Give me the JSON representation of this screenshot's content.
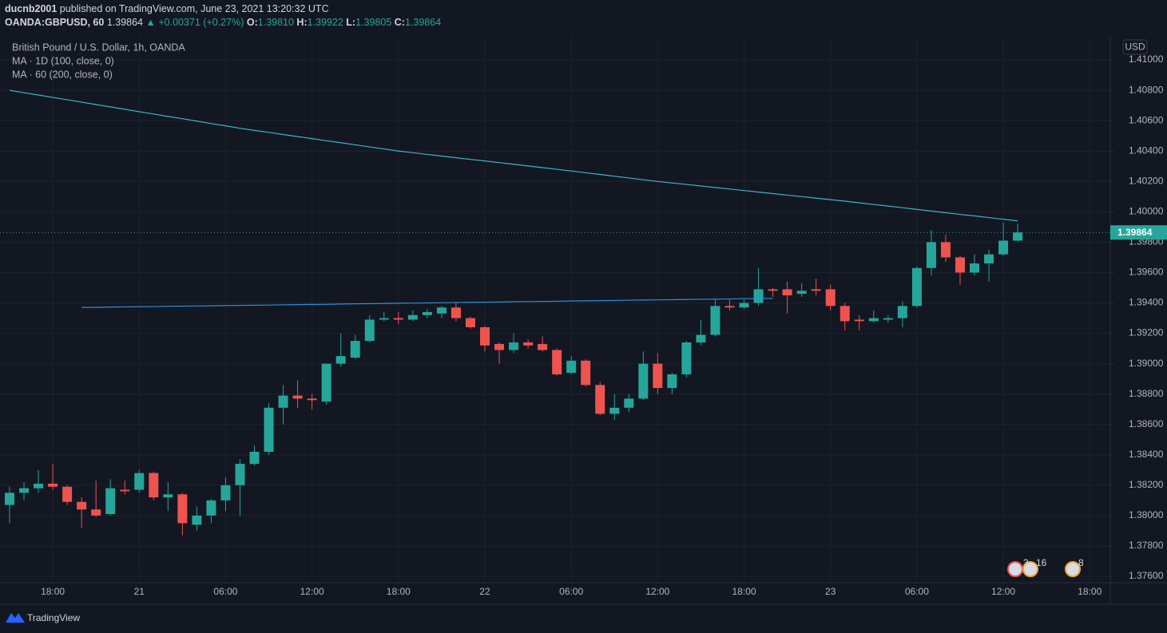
{
  "header": {
    "author": "ducnb2001",
    "published": "published on TradingView.com, June 23, 2021 13:20:32 UTC",
    "symbol": "OANDA:GBPUSD, 60",
    "last": "1.39864",
    "arrow": "▲",
    "change": "+0.00371 (+0.27%)",
    "open_label": "O:",
    "open": "1.39810",
    "high_label": "H:",
    "high": "1.39922",
    "low_label": "L:",
    "low": "1.39805",
    "close_label": "C:",
    "close": "1.39864"
  },
  "currency": "USD",
  "events": [
    3,
    16,
    8
  ],
  "footer": "TradingView",
  "chart_data": {
    "type": "candlestick",
    "title": "British Pound / U.S. Dollar, 1h, OANDA",
    "up_color": "#26a69a",
    "down_color": "#ef5350",
    "grid": true,
    "categories": [
      null,
      null,
      null,
      "18:00",
      null,
      null,
      null,
      null,
      null,
      "21",
      null,
      null,
      null,
      null,
      null,
      "06:00",
      null,
      null,
      null,
      null,
      null,
      "12:00",
      null,
      null,
      null,
      null,
      null,
      "18:00",
      null,
      null,
      null,
      null,
      null,
      "22",
      null,
      null,
      null,
      null,
      null,
      "06:00",
      null,
      null,
      null,
      null,
      null,
      "12:00",
      null,
      null,
      null,
      null,
      null,
      "18:00",
      null,
      null,
      null,
      null,
      null,
      "23",
      null,
      null,
      null,
      null,
      null,
      "06:00",
      null,
      null,
      null,
      null,
      null,
      "12:00",
      null,
      null,
      null,
      null,
      null,
      "18:00",
      null
    ],
    "open": [
      1.3807,
      1.3815,
      1.3818,
      1.3821,
      1.3819,
      1.3809,
      1.3804,
      1.3801,
      1.3817,
      1.3817,
      1.3828,
      1.3812,
      1.3814,
      1.3794,
      1.38,
      1.381,
      1.382,
      1.3834,
      1.3842,
      1.3871,
      1.3879,
      1.3877,
      1.3875,
      1.39,
      1.3904,
      1.3915,
      1.3929,
      1.393,
      1.3929,
      1.3932,
      1.3933,
      1.3937,
      1.393,
      1.3924,
      1.3913,
      1.3909,
      1.3914,
      1.3913,
      1.3909,
      1.3894,
      1.3902,
      1.3886,
      1.3867,
      1.3871,
      1.3877,
      1.39,
      1.3884,
      1.3893,
      1.3914,
      1.3919,
      1.3938,
      1.3937,
      1.394,
      1.3949,
      1.3949,
      1.3946,
      1.3949,
      1.3949,
      1.3938,
      1.3929,
      1.3928,
      1.3929,
      1.393,
      1.3938,
      1.3963,
      1.398,
      1.397,
      1.396,
      1.3966,
      1.3972,
      1.3981,
      null,
      null,
      null,
      null,
      null,
      null
    ],
    "high": [
      1.3819,
      1.3822,
      1.383,
      1.3834,
      1.382,
      1.3812,
      1.3823,
      1.3824,
      1.3823,
      1.383,
      1.3829,
      1.3822,
      1.3815,
      1.3806,
      1.3811,
      1.3825,
      1.3837,
      1.3846,
      1.3874,
      1.3886,
      1.3889,
      1.388,
      1.39,
      1.392,
      1.3919,
      1.3932,
      1.3934,
      1.3934,
      1.3935,
      1.3936,
      1.3938,
      1.394,
      1.3931,
      1.3925,
      1.3914,
      1.392,
      1.3916,
      1.3918,
      1.391,
      1.3905,
      1.3903,
      1.3888,
      1.388,
      1.388,
      1.3908,
      1.3907,
      1.3894,
      1.3915,
      1.3929,
      1.3942,
      1.3942,
      1.3942,
      1.3963,
      1.395,
      1.3954,
      1.3953,
      1.3956,
      1.3952,
      1.394,
      1.3932,
      1.3935,
      1.3932,
      1.3941,
      1.3964,
      1.3988,
      1.3985,
      1.3971,
      1.3972,
      1.3975,
      1.3993,
      1.39922,
      null,
      null,
      null,
      null,
      null,
      null
    ],
    "low": [
      1.3795,
      1.381,
      1.3815,
      1.3817,
      1.3807,
      1.3792,
      1.3799,
      1.38,
      1.3814,
      1.3815,
      1.381,
      1.3803,
      1.3787,
      1.379,
      1.3795,
      1.3803,
      1.38,
      1.3833,
      1.384,
      1.386,
      1.3871,
      1.387,
      1.3873,
      1.3898,
      1.3903,
      1.3914,
      1.3928,
      1.3926,
      1.3928,
      1.393,
      1.393,
      1.3928,
      1.3923,
      1.3908,
      1.39,
      1.3907,
      1.391,
      1.3908,
      1.3892,
      1.3893,
      1.3885,
      1.3866,
      1.3863,
      1.3868,
      1.3876,
      1.388,
      1.388,
      1.3891,
      1.3912,
      1.3918,
      1.3935,
      1.3936,
      1.3938,
      1.3944,
      1.3933,
      1.3944,
      1.3945,
      1.3935,
      1.3922,
      1.3922,
      1.3927,
      1.3927,
      1.3924,
      1.3937,
      1.3958,
      1.3967,
      1.3952,
      1.3958,
      1.3954,
      1.3971,
      1.39805,
      null,
      null,
      null,
      null,
      null,
      null
    ],
    "close": [
      1.3815,
      1.3818,
      1.3821,
      1.3819,
      1.3809,
      1.3804,
      1.38,
      1.3818,
      1.3816,
      1.3828,
      1.3812,
      1.3814,
      1.3795,
      1.38,
      1.381,
      1.382,
      1.3834,
      1.3842,
      1.3871,
      1.3879,
      1.3877,
      1.3876,
      1.39,
      1.3905,
      1.3915,
      1.3929,
      1.393,
      1.3929,
      1.3932,
      1.3934,
      1.3937,
      1.393,
      1.3924,
      1.3912,
      1.3909,
      1.3914,
      1.3912,
      1.3909,
      1.3893,
      1.3902,
      1.3886,
      1.3867,
      1.3871,
      1.3877,
      1.39,
      1.3884,
      1.3893,
      1.3914,
      1.3919,
      1.3938,
      1.3937,
      1.394,
      1.3949,
      1.3948,
      1.3945,
      1.3948,
      1.3948,
      1.3938,
      1.3928,
      1.3928,
      1.393,
      1.393,
      1.3938,
      1.3963,
      1.398,
      1.397,
      1.396,
      1.3966,
      1.3972,
      1.3981,
      1.39864,
      null,
      null,
      null,
      null,
      null,
      null
    ],
    "series": [
      {
        "name": "MA · 1D (100, close, 0)",
        "type": "line",
        "color": "#2f8fd8",
        "values": [
          null,
          null,
          null,
          null,
          null,
          1.3937,
          1.39371,
          1.39373,
          1.39374,
          1.39375,
          1.39376,
          1.39378,
          1.39379,
          1.3938,
          1.39381,
          1.39383,
          1.39384,
          1.39385,
          1.39386,
          1.39388,
          1.39389,
          1.3939,
          1.39391,
          1.39393,
          1.39394,
          1.39395,
          1.39396,
          1.39398,
          1.39399,
          1.394,
          1.39401,
          1.39403,
          1.39404,
          1.39405,
          1.39406,
          1.39408,
          1.39409,
          1.3941,
          1.39411,
          1.39413,
          1.39414,
          1.39415,
          1.39416,
          1.39418,
          1.39419,
          1.3942,
          1.39421,
          1.39423,
          1.39424,
          1.39425,
          1.39426,
          1.39428,
          1.39429,
          1.3943,
          null,
          null,
          null,
          null,
          null,
          null,
          null,
          null,
          null,
          null,
          null,
          null,
          null,
          null,
          null,
          null,
          null,
          null,
          null,
          null,
          null,
          null,
          null
        ]
      },
      {
        "name": "MA · 60 (200, close, 0)",
        "type": "line",
        "color": "#3cb4c6",
        "values": [
          1.408,
          1.40784,
          1.40769,
          1.40753,
          1.40738,
          1.40722,
          1.40706,
          1.40691,
          1.40675,
          1.40659,
          1.40644,
          1.40628,
          1.40613,
          1.40597,
          1.40581,
          1.40566,
          1.4055,
          1.40536,
          1.40523,
          1.40509,
          1.40495,
          1.40482,
          1.40468,
          1.40455,
          1.40441,
          1.40427,
          1.40414,
          1.404,
          1.40389,
          1.40378,
          1.40367,
          1.40356,
          1.40345,
          1.40335,
          1.40324,
          1.40313,
          1.40302,
          1.40291,
          1.4028,
          1.40269,
          1.40257,
          1.40246,
          1.40234,
          1.40223,
          1.40211,
          1.402,
          1.4019,
          1.4018,
          1.4017,
          1.4016,
          1.4015,
          1.4014,
          1.4013,
          1.4012,
          1.4011,
          1.401,
          1.4009,
          1.4008,
          1.4007,
          1.40059,
          1.40048,
          1.40038,
          1.40027,
          1.40016,
          1.40005,
          1.39994,
          1.39983,
          1.39973,
          1.39962,
          1.39951,
          1.3994,
          null,
          null,
          null,
          null,
          null,
          null
        ]
      }
    ],
    "ylim": [
      1.37558,
      1.41158
    ],
    "yticks": [
      {
        "value": 1.376,
        "label": "1.37600"
      },
      {
        "value": 1.378,
        "label": "1.37800"
      },
      {
        "value": 1.38,
        "label": "1.38000"
      },
      {
        "value": 1.382,
        "label": "1.38200"
      },
      {
        "value": 1.384,
        "label": "1.38400"
      },
      {
        "value": 1.386,
        "label": "1.38600"
      },
      {
        "value": 1.388,
        "label": "1.38800"
      },
      {
        "value": 1.39,
        "label": "1.39000"
      },
      {
        "value": 1.392,
        "label": "1.39200"
      },
      {
        "value": 1.394,
        "label": "1.39400"
      },
      {
        "value": 1.396,
        "label": "1.39600"
      },
      {
        "value": 1.398,
        "label": "1.39800"
      },
      {
        "value": 1.4,
        "label": "1.40000"
      },
      {
        "value": 1.402,
        "label": "1.40200"
      },
      {
        "value": 1.404,
        "label": "1.40400"
      },
      {
        "value": 1.406,
        "label": "1.40600"
      },
      {
        "value": 1.408,
        "label": "1.40800"
      },
      {
        "value": 1.41,
        "label": "1.41000"
      }
    ]
  }
}
